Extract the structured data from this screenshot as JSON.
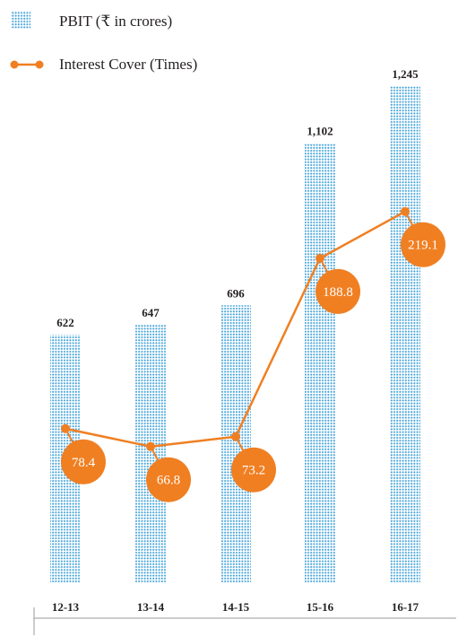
{
  "chart_data": {
    "type": "bar",
    "categories": [
      "12-13",
      "13-14",
      "14-15",
      "15-16",
      "16-17"
    ],
    "series": [
      {
        "name": "PBIT (₹ in crores)",
        "kind": "bar",
        "values": [
          622,
          647,
          696,
          1102,
          1245
        ],
        "value_labels": [
          "622",
          "647",
          "696",
          "1,102",
          "1,245"
        ],
        "color": "#3fa0d6"
      },
      {
        "name": "Interest Cover (Times)",
        "kind": "line",
        "values": [
          78.4,
          66.8,
          73.2,
          188.8,
          219.1
        ],
        "value_labels": [
          "78.4",
          "66.8",
          "73.2",
          "188.8",
          "219.1"
        ],
        "color": "#f07f22"
      }
    ],
    "legend_position": "top-left",
    "grid": false
  }
}
